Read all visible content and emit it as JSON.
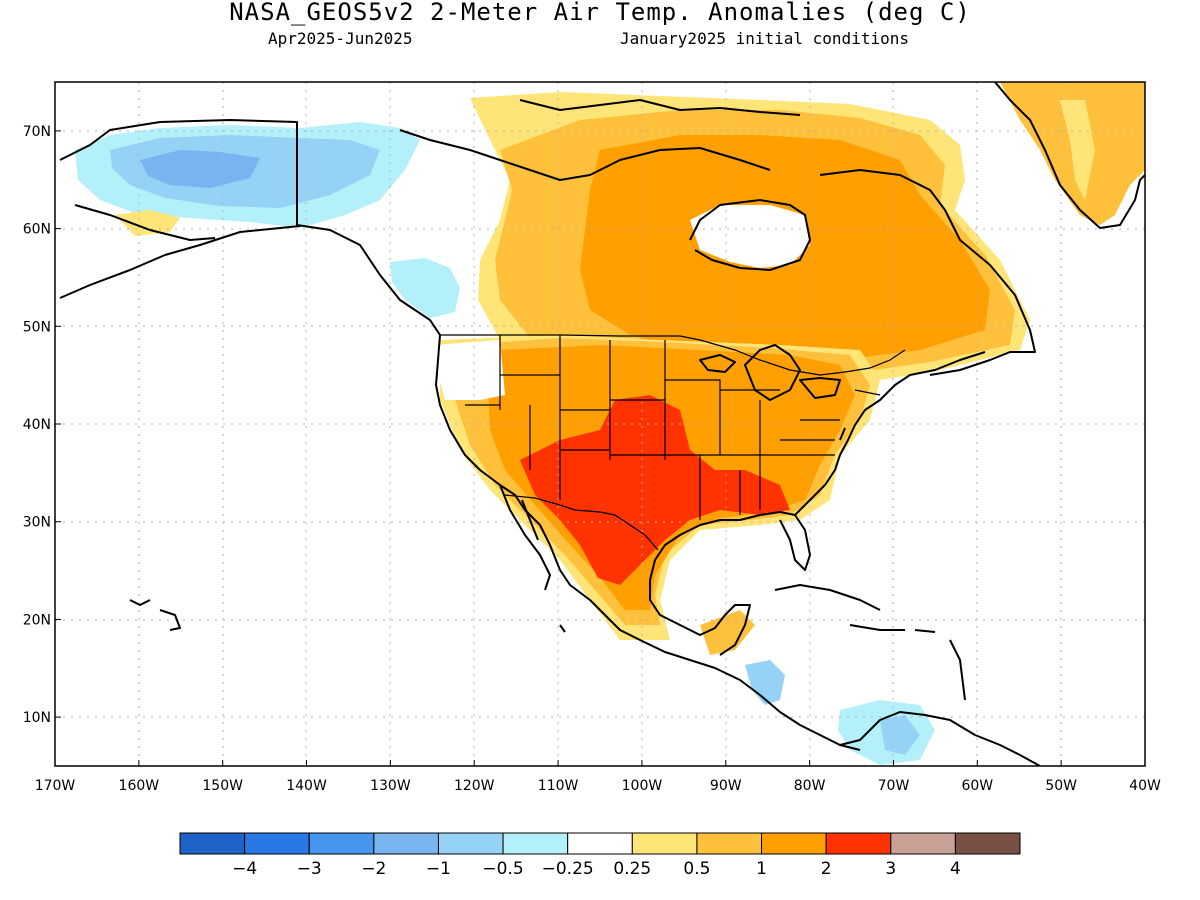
{
  "header": {
    "title": "NASA_GEOS5v2 2-Meter Air Temp. Anomalies (deg C)",
    "period": "Apr2025-Jun2025",
    "init": "January2025 initial conditions"
  },
  "axes": {
    "lat_labels": [
      "70N",
      "60N",
      "50N",
      "40N",
      "30N",
      "20N",
      "10N"
    ],
    "lon_labels": [
      "170W",
      "160W",
      "150W",
      "140W",
      "130W",
      "120W",
      "110W",
      "100W",
      "90W",
      "80W",
      "70W",
      "60W",
      "50W",
      "40W"
    ],
    "lat_range": [
      5,
      75
    ],
    "lon_range": [
      -170,
      -40
    ],
    "grid": "dotted"
  },
  "colorbar": {
    "labels": [
      "-4",
      "-3",
      "-2",
      "-1",
      "-0.5",
      "-0.25",
      "0.25",
      "0.5",
      "1",
      "2",
      "3",
      "4"
    ],
    "colors": [
      "#1e64c8",
      "#2a78e6",
      "#4696f0",
      "#78b4f0",
      "#96d2f5",
      "#b4f0fa",
      "#ffffff",
      "#ffe578",
      "#ffc03c",
      "#ffa000",
      "#ff3200",
      "#c8a096",
      "#785046"
    ]
  },
  "anomaly_regions": [
    {
      "name": "alaska-cool",
      "level": "-1",
      "color": "#96d2f5"
    },
    {
      "name": "alaska-core",
      "level": "-2",
      "color": "#78b4f0"
    },
    {
      "name": "canada-warm",
      "level": "1",
      "color": "#ffa000"
    },
    {
      "name": "us-warm",
      "level": "1",
      "color": "#ffa000"
    },
    {
      "name": "southwest-hot",
      "level": "2",
      "color": "#ff3200"
    },
    {
      "name": "greenland-warm",
      "level": "0.5",
      "color": "#ffc03c"
    },
    {
      "name": "central-america-cool",
      "level": "-0.5",
      "color": "#96d2f5"
    }
  ]
}
